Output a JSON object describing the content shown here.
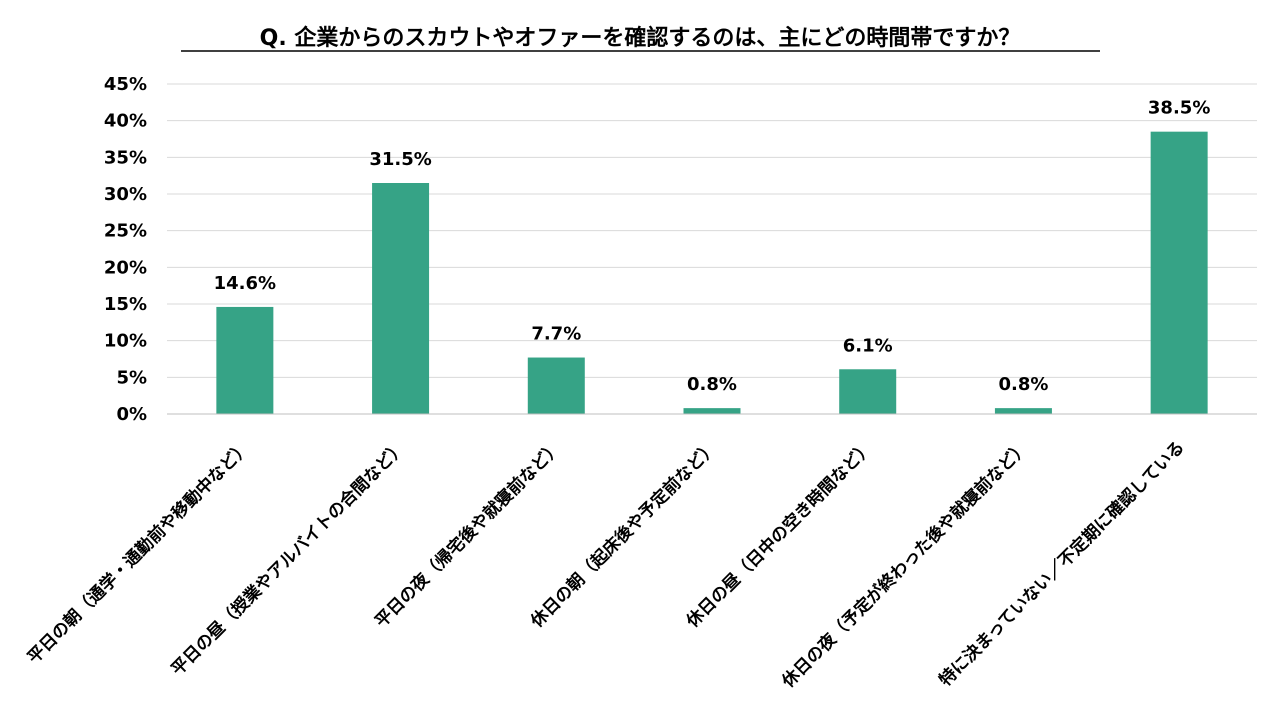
{
  "chart_data": {
    "type": "bar",
    "title": "Q. 企業からのスカウトやオファーを確認するのは、主にどの時間帯ですか？",
    "categories": [
      "平日の朝（通学・通勤前や移動中など）",
      "平日の昼（授業やアルバイトの合間など）",
      "平日の夜（帰宅後や就寝前など）",
      "休日の朝（起床後や予定前など）",
      "休日の昼（日中の空き時間など）",
      "休日の夜（予定が終わった後や就寝前など）",
      "特に決まっていない／不定期に確認している"
    ],
    "values": [
      14.6,
      31.5,
      7.7,
      0.8,
      6.1,
      0.8,
      38.5
    ],
    "data_labels": [
      "14.6%",
      "31.5%",
      "7.7%",
      "0.8%",
      "6.1%",
      "0.8%",
      "38.5%"
    ],
    "y_ticks": [
      "0%",
      "5%",
      "10%",
      "15%",
      "20%",
      "25%",
      "30%",
      "35%",
      "40%",
      "45%"
    ],
    "ylim": [
      0,
      45
    ],
    "grid": true,
    "legend": "none",
    "bar_color": "#36a386"
  }
}
